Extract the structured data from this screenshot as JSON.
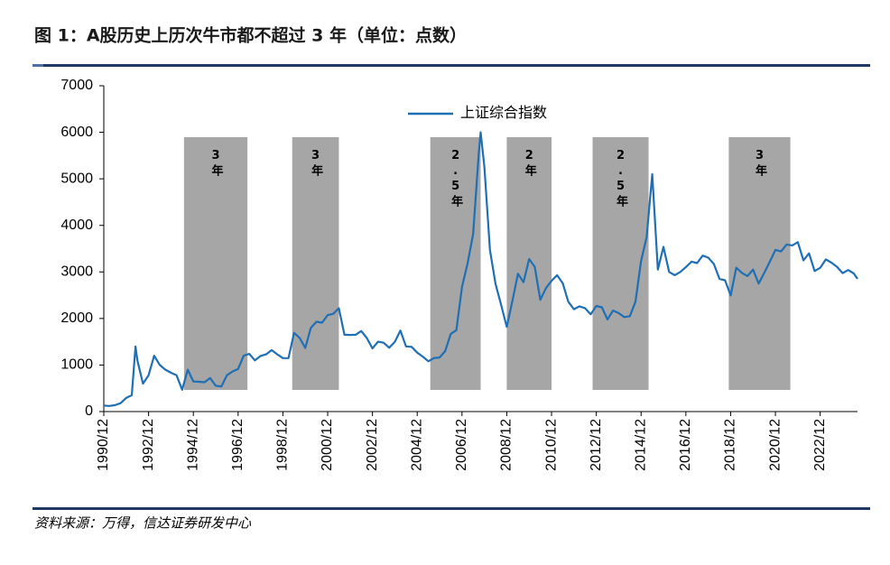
{
  "chart_data": {
    "type": "line",
    "title": "图 1：A股历史上历次牛市都不超过 3 年（单位：点数）",
    "source": "资料来源：万得，信达证券研发中心",
    "x": [
      "1990/12",
      "1991/03",
      "1991/06",
      "1991/09",
      "1991/12",
      "1992/03",
      "1992/05",
      "1992/06",
      "1992/09",
      "1992/12",
      "1993/03",
      "1993/06",
      "1993/09",
      "1993/12",
      "1994/03",
      "1994/06",
      "1994/09",
      "1994/12",
      "1995/03",
      "1995/06",
      "1995/09",
      "1995/12",
      "1996/03",
      "1996/06",
      "1996/09",
      "1996/12",
      "1997/03",
      "1997/06",
      "1997/09",
      "1997/12",
      "1998/03",
      "1998/06",
      "1998/09",
      "1998/12",
      "1999/03",
      "1999/06",
      "1999/09",
      "1999/12",
      "2000/03",
      "2000/06",
      "2000/09",
      "2000/12",
      "2001/03",
      "2001/06",
      "2001/09",
      "2001/12",
      "2002/03",
      "2002/06",
      "2002/09",
      "2002/12",
      "2003/03",
      "2003/06",
      "2003/09",
      "2003/12",
      "2004/03",
      "2004/06",
      "2004/09",
      "2004/12",
      "2005/03",
      "2005/06",
      "2005/09",
      "2005/12",
      "2006/03",
      "2006/06",
      "2006/09",
      "2006/12",
      "2007/03",
      "2007/06",
      "2007/09",
      "2007/10",
      "2007/12",
      "2008/03",
      "2008/06",
      "2008/09",
      "2008/12",
      "2009/03",
      "2009/06",
      "2009/09",
      "2009/12",
      "2010/03",
      "2010/06",
      "2010/09",
      "2010/12",
      "2011/03",
      "2011/06",
      "2011/09",
      "2011/12",
      "2012/03",
      "2012/06",
      "2012/09",
      "2012/12",
      "2013/03",
      "2013/06",
      "2013/09",
      "2013/12",
      "2014/03",
      "2014/06",
      "2014/09",
      "2014/12",
      "2015/03",
      "2015/06",
      "2015/09",
      "2015/12",
      "2016/03",
      "2016/06",
      "2016/09",
      "2016/12",
      "2017/03",
      "2017/06",
      "2017/09",
      "2017/12",
      "2018/03",
      "2018/06",
      "2018/09",
      "2018/12",
      "2019/03",
      "2019/06",
      "2019/09",
      "2019/12",
      "2020/03",
      "2020/06",
      "2020/09",
      "2020/12",
      "2021/03",
      "2021/06",
      "2021/09",
      "2021/12",
      "2022/03",
      "2022/06",
      "2022/09",
      "2022/12",
      "2023/03",
      "2023/06",
      "2023/09",
      "2023/12",
      "2024/03",
      "2024/06",
      "2024/08"
    ],
    "series": [
      {
        "name": "上证综合指数",
        "color": "#1f6fb4",
        "values": [
          128,
          120,
          137,
          180,
          292,
          350,
          1400,
          1100,
          600,
          780,
          1200,
          1000,
          900,
          833,
          780,
          470,
          900,
          647,
          640,
          630,
          720,
          555,
          540,
          780,
          860,
          917,
          1200,
          1240,
          1100,
          1194,
          1230,
          1320,
          1230,
          1147,
          1150,
          1690,
          1580,
          1367,
          1800,
          1930,
          1910,
          2073,
          2100,
          2220,
          1650,
          1646,
          1650,
          1730,
          1580,
          1357,
          1500,
          1480,
          1370,
          1497,
          1740,
          1400,
          1390,
          1266,
          1180,
          1080,
          1150,
          1161,
          1300,
          1670,
          1750,
          2675,
          3180,
          3820,
          5550,
          6000,
          5262,
          3470,
          2740,
          2290,
          1821,
          2370,
          2960,
          2780,
          3277,
          3110,
          2400,
          2650,
          2808,
          2930,
          2760,
          2360,
          2199,
          2260,
          2220,
          2090,
          2269,
          2240,
          1980,
          2170,
          2116,
          2030,
          2050,
          2360,
          3235,
          3750,
          5100,
          3050,
          3539,
          3000,
          2930,
          3000,
          3104,
          3220,
          3190,
          3350,
          3307,
          3170,
          2850,
          2820,
          2494,
          3090,
          2980,
          2910,
          3050,
          2750,
          2980,
          3220,
          3473,
          3440,
          3590,
          3570,
          3640,
          3250,
          3400,
          3020,
          3089,
          3270,
          3200,
          3110,
          2975,
          3040,
          2967,
          2850
        ]
      }
    ],
    "xlim": [
      "1990/12",
      "2024/08"
    ],
    "xticks": [
      "1990/12",
      "1992/12",
      "1994/12",
      "1996/12",
      "1998/12",
      "2000/12",
      "2002/12",
      "2004/12",
      "2006/12",
      "2008/12",
      "2010/12",
      "2012/12",
      "2014/12",
      "2016/12",
      "2018/12",
      "2020/12",
      "2022/12"
    ],
    "ylim": [
      0,
      7000
    ],
    "yticks": [
      0,
      1000,
      2000,
      3000,
      4000,
      5000,
      6000,
      7000
    ],
    "bands": [
      {
        "label": "3年",
        "start": "1994/07",
        "end": "1997/05"
      },
      {
        "label": "3年",
        "start": "1999/05",
        "end": "2001/06"
      },
      {
        "label": "2.5年",
        "start": "2005/07",
        "end": "2007/10"
      },
      {
        "label": "2年",
        "start": "2008/12",
        "end": "2010/12"
      },
      {
        "label": "2.5年",
        "start": "2012/10",
        "end": "2015/04"
      },
      {
        "label": "3年",
        "start": "2018/11",
        "end": "2021/08"
      }
    ],
    "band_color": "#a6a6a6"
  }
}
